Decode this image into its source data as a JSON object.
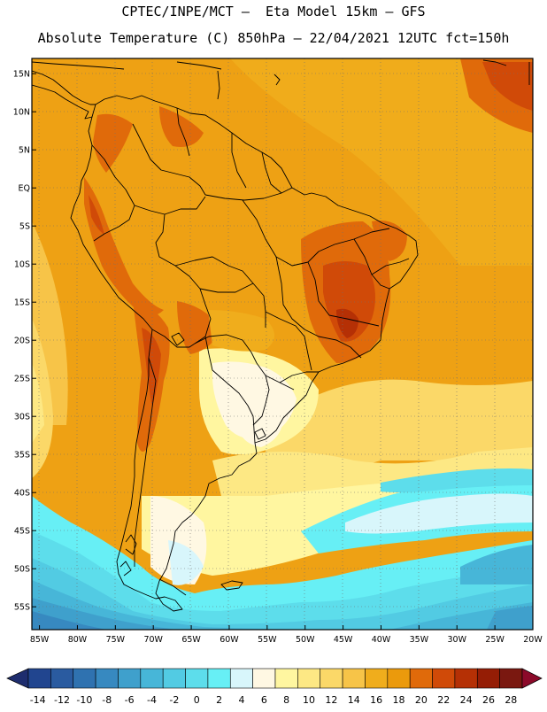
{
  "header": {
    "line1": "CPTEC/INPE/MCT –  Eta Model 15km – GFS",
    "line2": "Absolute Temperature (C) 850hPa – 22/04/2021 12UTC fct=150h"
  },
  "map": {
    "lon_range": [
      -86,
      -20
    ],
    "lat_range": [
      -58,
      17
    ],
    "lat_ticks": [
      {
        "label": "15N",
        "value": 15
      },
      {
        "label": "10N",
        "value": 10
      },
      {
        "label": "5N",
        "value": 5
      },
      {
        "label": "EQ",
        "value": 0
      },
      {
        "label": "5S",
        "value": -5
      },
      {
        "label": "10S",
        "value": -10
      },
      {
        "label": "15S",
        "value": -15
      },
      {
        "label": "20S",
        "value": -20
      },
      {
        "label": "25S",
        "value": -25
      },
      {
        "label": "30S",
        "value": -30
      },
      {
        "label": "35S",
        "value": -35
      },
      {
        "label": "40S",
        "value": -40
      },
      {
        "label": "45S",
        "value": -45
      },
      {
        "label": "50S",
        "value": -50
      },
      {
        "label": "55S",
        "value": -55
      }
    ],
    "lon_ticks": [
      {
        "label": "85W",
        "value": -85
      },
      {
        "label": "80W",
        "value": -80
      },
      {
        "label": "75W",
        "value": -75
      },
      {
        "label": "70W",
        "value": -70
      },
      {
        "label": "65W",
        "value": -65
      },
      {
        "label": "60W",
        "value": -60
      },
      {
        "label": "55W",
        "value": -55
      },
      {
        "label": "50W",
        "value": -50
      },
      {
        "label": "45W",
        "value": -45
      },
      {
        "label": "40W",
        "value": -40
      },
      {
        "label": "35W",
        "value": -35
      },
      {
        "label": "30W",
        "value": -30
      },
      {
        "label": "25W",
        "value": -25
      },
      {
        "label": "20W",
        "value": -20
      }
    ]
  },
  "colorbar": {
    "labels": [
      "-14",
      "-12",
      "-10",
      "-8",
      "-6",
      "-4",
      "-2",
      "0",
      "2",
      "4",
      "6",
      "8",
      "10",
      "12",
      "14",
      "16",
      "18",
      "20",
      "22",
      "24",
      "26",
      "28"
    ],
    "low_arrow_color": "#1e2d6e",
    "high_arrow_color": "#8c0a2a",
    "colors": [
      "#21458f",
      "#2a5ba0",
      "#2f72b0",
      "#3789c0",
      "#3fa0cc",
      "#47b6d8",
      "#52cbe3",
      "#5dddeb",
      "#67eff5",
      "#d8f6fb",
      "#fff8e3",
      "#fff6a0",
      "#fde884",
      "#fbd868",
      "#f7c448",
      "#f0ad1c",
      "#eb9a0c",
      "#e06a0a",
      "#d04a08",
      "#b53005",
      "#951d05",
      "#7a1810"
    ]
  }
}
